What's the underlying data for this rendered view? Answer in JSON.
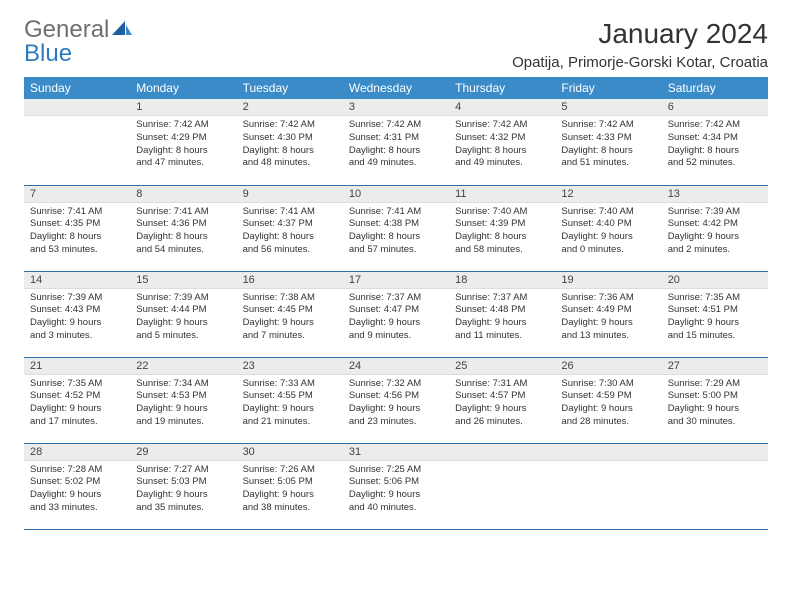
{
  "brand": {
    "part1": "General",
    "part2": "Blue"
  },
  "title": "January 2024",
  "location": "Opatija, Primorje-Gorski Kotar, Croatia",
  "colors": {
    "header_bg": "#3b8bc8",
    "header_text": "#ffffff",
    "daynum_bg": "#ececec",
    "row_border": "#2f6fa8",
    "logo_gray": "#6f6f6f",
    "logo_blue": "#2f7bbf"
  },
  "weekdays": [
    "Sunday",
    "Monday",
    "Tuesday",
    "Wednesday",
    "Thursday",
    "Friday",
    "Saturday"
  ],
  "weeks": [
    [
      {
        "n": "",
        "lines": []
      },
      {
        "n": "1",
        "lines": [
          "Sunrise: 7:42 AM",
          "Sunset: 4:29 PM",
          "Daylight: 8 hours",
          "and 47 minutes."
        ]
      },
      {
        "n": "2",
        "lines": [
          "Sunrise: 7:42 AM",
          "Sunset: 4:30 PM",
          "Daylight: 8 hours",
          "and 48 minutes."
        ]
      },
      {
        "n": "3",
        "lines": [
          "Sunrise: 7:42 AM",
          "Sunset: 4:31 PM",
          "Daylight: 8 hours",
          "and 49 minutes."
        ]
      },
      {
        "n": "4",
        "lines": [
          "Sunrise: 7:42 AM",
          "Sunset: 4:32 PM",
          "Daylight: 8 hours",
          "and 49 minutes."
        ]
      },
      {
        "n": "5",
        "lines": [
          "Sunrise: 7:42 AM",
          "Sunset: 4:33 PM",
          "Daylight: 8 hours",
          "and 51 minutes."
        ]
      },
      {
        "n": "6",
        "lines": [
          "Sunrise: 7:42 AM",
          "Sunset: 4:34 PM",
          "Daylight: 8 hours",
          "and 52 minutes."
        ]
      }
    ],
    [
      {
        "n": "7",
        "lines": [
          "Sunrise: 7:41 AM",
          "Sunset: 4:35 PM",
          "Daylight: 8 hours",
          "and 53 minutes."
        ]
      },
      {
        "n": "8",
        "lines": [
          "Sunrise: 7:41 AM",
          "Sunset: 4:36 PM",
          "Daylight: 8 hours",
          "and 54 minutes."
        ]
      },
      {
        "n": "9",
        "lines": [
          "Sunrise: 7:41 AM",
          "Sunset: 4:37 PM",
          "Daylight: 8 hours",
          "and 56 minutes."
        ]
      },
      {
        "n": "10",
        "lines": [
          "Sunrise: 7:41 AM",
          "Sunset: 4:38 PM",
          "Daylight: 8 hours",
          "and 57 minutes."
        ]
      },
      {
        "n": "11",
        "lines": [
          "Sunrise: 7:40 AM",
          "Sunset: 4:39 PM",
          "Daylight: 8 hours",
          "and 58 minutes."
        ]
      },
      {
        "n": "12",
        "lines": [
          "Sunrise: 7:40 AM",
          "Sunset: 4:40 PM",
          "Daylight: 9 hours",
          "and 0 minutes."
        ]
      },
      {
        "n": "13",
        "lines": [
          "Sunrise: 7:39 AM",
          "Sunset: 4:42 PM",
          "Daylight: 9 hours",
          "and 2 minutes."
        ]
      }
    ],
    [
      {
        "n": "14",
        "lines": [
          "Sunrise: 7:39 AM",
          "Sunset: 4:43 PM",
          "Daylight: 9 hours",
          "and 3 minutes."
        ]
      },
      {
        "n": "15",
        "lines": [
          "Sunrise: 7:39 AM",
          "Sunset: 4:44 PM",
          "Daylight: 9 hours",
          "and 5 minutes."
        ]
      },
      {
        "n": "16",
        "lines": [
          "Sunrise: 7:38 AM",
          "Sunset: 4:45 PM",
          "Daylight: 9 hours",
          "and 7 minutes."
        ]
      },
      {
        "n": "17",
        "lines": [
          "Sunrise: 7:37 AM",
          "Sunset: 4:47 PM",
          "Daylight: 9 hours",
          "and 9 minutes."
        ]
      },
      {
        "n": "18",
        "lines": [
          "Sunrise: 7:37 AM",
          "Sunset: 4:48 PM",
          "Daylight: 9 hours",
          "and 11 minutes."
        ]
      },
      {
        "n": "19",
        "lines": [
          "Sunrise: 7:36 AM",
          "Sunset: 4:49 PM",
          "Daylight: 9 hours",
          "and 13 minutes."
        ]
      },
      {
        "n": "20",
        "lines": [
          "Sunrise: 7:35 AM",
          "Sunset: 4:51 PM",
          "Daylight: 9 hours",
          "and 15 minutes."
        ]
      }
    ],
    [
      {
        "n": "21",
        "lines": [
          "Sunrise: 7:35 AM",
          "Sunset: 4:52 PM",
          "Daylight: 9 hours",
          "and 17 minutes."
        ]
      },
      {
        "n": "22",
        "lines": [
          "Sunrise: 7:34 AM",
          "Sunset: 4:53 PM",
          "Daylight: 9 hours",
          "and 19 minutes."
        ]
      },
      {
        "n": "23",
        "lines": [
          "Sunrise: 7:33 AM",
          "Sunset: 4:55 PM",
          "Daylight: 9 hours",
          "and 21 minutes."
        ]
      },
      {
        "n": "24",
        "lines": [
          "Sunrise: 7:32 AM",
          "Sunset: 4:56 PM",
          "Daylight: 9 hours",
          "and 23 minutes."
        ]
      },
      {
        "n": "25",
        "lines": [
          "Sunrise: 7:31 AM",
          "Sunset: 4:57 PM",
          "Daylight: 9 hours",
          "and 26 minutes."
        ]
      },
      {
        "n": "26",
        "lines": [
          "Sunrise: 7:30 AM",
          "Sunset: 4:59 PM",
          "Daylight: 9 hours",
          "and 28 minutes."
        ]
      },
      {
        "n": "27",
        "lines": [
          "Sunrise: 7:29 AM",
          "Sunset: 5:00 PM",
          "Daylight: 9 hours",
          "and 30 minutes."
        ]
      }
    ],
    [
      {
        "n": "28",
        "lines": [
          "Sunrise: 7:28 AM",
          "Sunset: 5:02 PM",
          "Daylight: 9 hours",
          "and 33 minutes."
        ]
      },
      {
        "n": "29",
        "lines": [
          "Sunrise: 7:27 AM",
          "Sunset: 5:03 PM",
          "Daylight: 9 hours",
          "and 35 minutes."
        ]
      },
      {
        "n": "30",
        "lines": [
          "Sunrise: 7:26 AM",
          "Sunset: 5:05 PM",
          "Daylight: 9 hours",
          "and 38 minutes."
        ]
      },
      {
        "n": "31",
        "lines": [
          "Sunrise: 7:25 AM",
          "Sunset: 5:06 PM",
          "Daylight: 9 hours",
          "and 40 minutes."
        ]
      },
      {
        "n": "",
        "lines": []
      },
      {
        "n": "",
        "lines": []
      },
      {
        "n": "",
        "lines": []
      }
    ]
  ]
}
